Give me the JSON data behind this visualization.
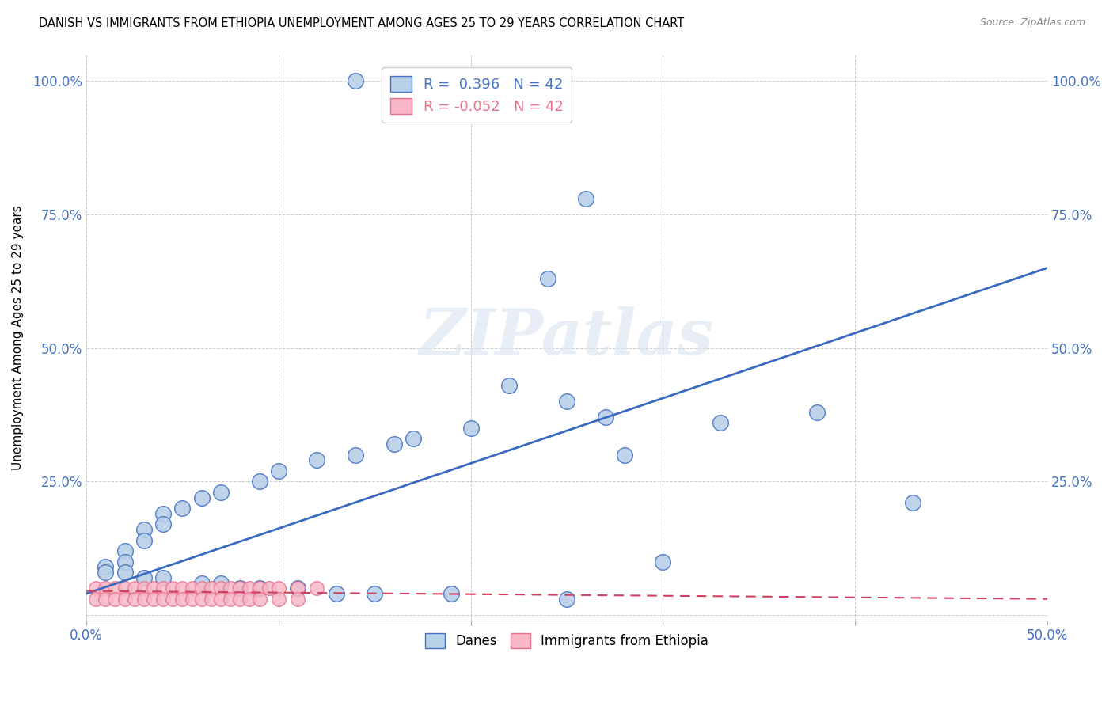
{
  "title": "DANISH VS IMMIGRANTS FROM ETHIOPIA UNEMPLOYMENT AMONG AGES 25 TO 29 YEARS CORRELATION CHART",
  "source": "Source: ZipAtlas.com",
  "ylabel": "Unemployment Among Ages 25 to 29 years",
  "xlim": [
    0.0,
    0.5
  ],
  "ylim": [
    -0.01,
    1.05
  ],
  "xticks": [
    0.0,
    0.1,
    0.2,
    0.3,
    0.4,
    0.5
  ],
  "xticklabels": [
    "0.0%",
    "",
    "",
    "",
    "",
    "50.0%"
  ],
  "yticks": [
    0.0,
    0.25,
    0.5,
    0.75,
    1.0
  ],
  "yticklabels": [
    "",
    "25.0%",
    "50.0%",
    "75.0%",
    "100.0%"
  ],
  "blue_scatter_x": [
    0.14,
    0.22,
    0.26,
    0.24,
    0.22,
    0.25,
    0.27,
    0.2,
    0.17,
    0.16,
    0.14,
    0.12,
    0.1,
    0.09,
    0.07,
    0.06,
    0.05,
    0.04,
    0.04,
    0.03,
    0.03,
    0.02,
    0.02,
    0.01,
    0.01,
    0.02,
    0.03,
    0.04,
    0.06,
    0.07,
    0.08,
    0.09,
    0.11,
    0.13,
    0.15,
    0.19,
    0.25,
    0.28,
    0.33,
    0.38,
    0.43,
    0.3
  ],
  "blue_scatter_y": [
    1.0,
    1.0,
    0.78,
    0.63,
    0.43,
    0.4,
    0.37,
    0.35,
    0.33,
    0.32,
    0.3,
    0.29,
    0.27,
    0.25,
    0.23,
    0.22,
    0.2,
    0.19,
    0.17,
    0.16,
    0.14,
    0.12,
    0.1,
    0.09,
    0.08,
    0.08,
    0.07,
    0.07,
    0.06,
    0.06,
    0.05,
    0.05,
    0.05,
    0.04,
    0.04,
    0.04,
    0.03,
    0.3,
    0.36,
    0.38,
    0.21,
    0.1
  ],
  "pink_scatter_x": [
    0.005,
    0.01,
    0.015,
    0.02,
    0.025,
    0.03,
    0.035,
    0.04,
    0.045,
    0.05,
    0.055,
    0.06,
    0.065,
    0.07,
    0.075,
    0.08,
    0.085,
    0.09,
    0.095,
    0.1,
    0.11,
    0.12,
    0.005,
    0.01,
    0.015,
    0.02,
    0.025,
    0.03,
    0.035,
    0.04,
    0.045,
    0.05,
    0.055,
    0.06,
    0.065,
    0.07,
    0.075,
    0.08,
    0.085,
    0.09,
    0.1,
    0.11
  ],
  "pink_scatter_y": [
    0.05,
    0.05,
    0.05,
    0.05,
    0.05,
    0.05,
    0.05,
    0.05,
    0.05,
    0.05,
    0.05,
    0.05,
    0.05,
    0.05,
    0.05,
    0.05,
    0.05,
    0.05,
    0.05,
    0.05,
    0.05,
    0.05,
    0.03,
    0.03,
    0.03,
    0.03,
    0.03,
    0.03,
    0.03,
    0.03,
    0.03,
    0.03,
    0.03,
    0.03,
    0.03,
    0.03,
    0.03,
    0.03,
    0.03,
    0.03,
    0.03,
    0.03
  ],
  "blue_line_x": [
    0.0,
    0.5
  ],
  "blue_line_y": [
    0.04,
    0.65
  ],
  "pink_line_x": [
    0.0,
    0.5
  ],
  "pink_line_y": [
    0.045,
    0.03
  ],
  "blue_fill_color": "#b8d0e8",
  "blue_edge_color": "#4472c4",
  "pink_fill_color": "#f8b8c8",
  "pink_edge_color": "#e8708a",
  "blue_line_color": "#3a6abf",
  "pink_line_color": "#d04060",
  "legend_blue_r": "0.396",
  "legend_pink_r": "-0.052",
  "legend_n": "42",
  "watermark_text": "ZIPatlas",
  "title_fontsize": 10.5,
  "ylabel_fontsize": 11,
  "tick_fontsize": 12,
  "axis_tick_color": "#4472c4",
  "grid_color": "#c8c8c8",
  "background_color": "#ffffff"
}
